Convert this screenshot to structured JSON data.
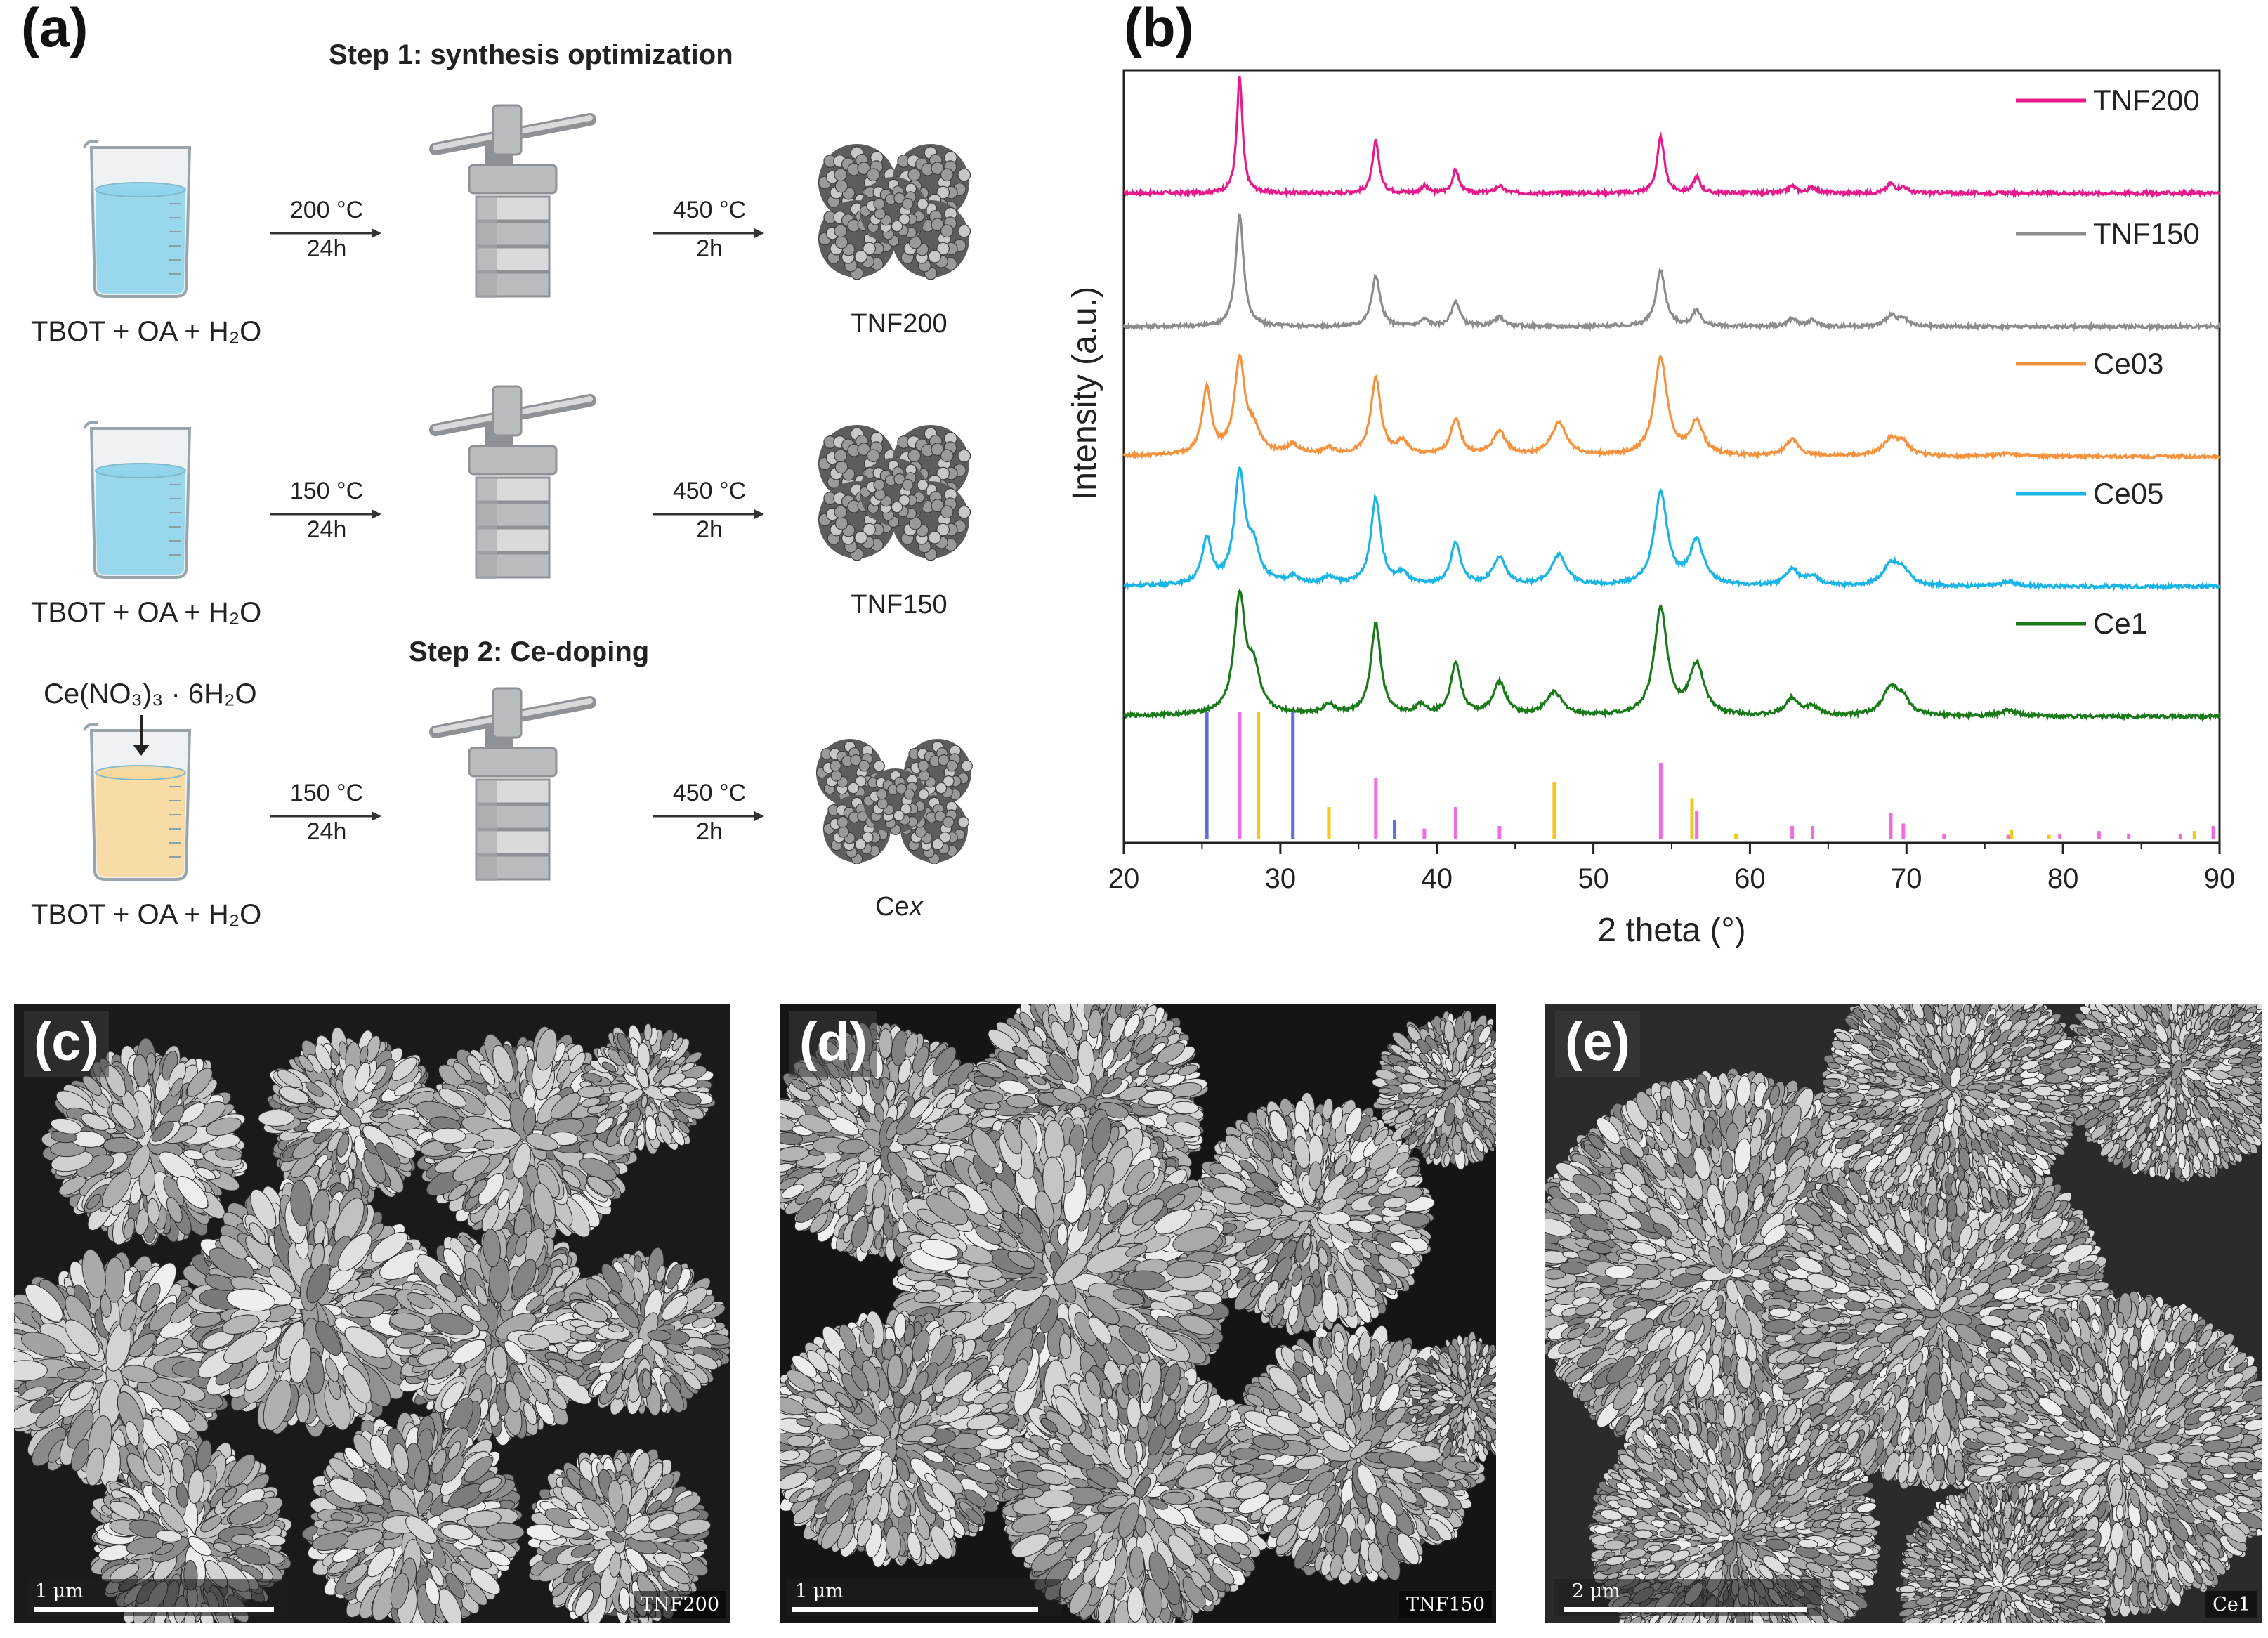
{
  "panel_a": {
    "letter": "(a)",
    "step1_title": "Step 1: synthesis optimization",
    "step2_title": "Step 2: Ce-doping",
    "rows": [
      {
        "reagent": "TBOT + OA + H₂O",
        "temp1": "200 °C",
        "time1": "24h",
        "temp2": "450 °C",
        "time2": "2h",
        "product": "TNF200",
        "liquid": "#8fd4ec"
      },
      {
        "reagent": "TBOT + OA + H₂O",
        "temp1": "150 °C",
        "time1": "24h",
        "temp2": "450 °C",
        "time2": "2h",
        "product": "TNF150",
        "liquid": "#8fd4ec"
      },
      {
        "reagent": "TBOT + OA + H₂O",
        "temp1": "150 °C",
        "time1": "24h",
        "temp2": "450 °C",
        "time2": "2h",
        "product": "Cex",
        "liquid": "#f7d9a0"
      }
    ],
    "dopant": "Ce(NO₃)₃ · 6H₂O"
  },
  "chart_data": {
    "type": "line",
    "panel_letter": "(b)",
    "xlabel": "2 theta (°)",
    "ylabel": "Intensity (a.u.)",
    "xlim": [
      20,
      90
    ],
    "xticks": [
      20,
      30,
      40,
      50,
      60,
      70,
      80,
      90
    ],
    "grid": false,
    "legend_placement": "right, beside each trace",
    "series": [
      {
        "name": "TNF200",
        "color": "#e8198b",
        "peaks": [
          [
            27.4,
            1.0,
            0.22
          ],
          [
            36.1,
            0.45,
            0.25
          ],
          [
            39.2,
            0.06,
            0.25
          ],
          [
            41.2,
            0.2,
            0.25
          ],
          [
            44.0,
            0.06,
            0.3
          ],
          [
            54.3,
            0.48,
            0.28
          ],
          [
            56.6,
            0.14,
            0.25
          ],
          [
            62.7,
            0.06,
            0.3
          ],
          [
            64.0,
            0.05,
            0.3
          ],
          [
            69.0,
            0.08,
            0.3
          ],
          [
            69.8,
            0.05,
            0.3
          ]
        ]
      },
      {
        "name": "TNF150",
        "color": "#8c8c8c",
        "peaks": [
          [
            27.4,
            1.0,
            0.3
          ],
          [
            36.1,
            0.45,
            0.32
          ],
          [
            39.2,
            0.06,
            0.32
          ],
          [
            41.2,
            0.22,
            0.32
          ],
          [
            44.0,
            0.08,
            0.4
          ],
          [
            54.3,
            0.5,
            0.36
          ],
          [
            56.6,
            0.14,
            0.32
          ],
          [
            62.7,
            0.07,
            0.35
          ],
          [
            64.0,
            0.05,
            0.35
          ],
          [
            69.0,
            0.1,
            0.4
          ],
          [
            69.8,
            0.06,
            0.35
          ]
        ]
      },
      {
        "name": "Ce03",
        "color": "#f5923e",
        "peaks": [
          [
            25.3,
            0.6,
            0.35
          ],
          [
            27.4,
            0.85,
            0.4
          ],
          [
            28.3,
            0.2,
            0.45
          ],
          [
            30.8,
            0.08,
            0.4
          ],
          [
            33.1,
            0.05,
            0.4
          ],
          [
            36.1,
            0.7,
            0.38
          ],
          [
            37.8,
            0.12,
            0.4
          ],
          [
            41.2,
            0.33,
            0.4
          ],
          [
            44.0,
            0.22,
            0.5
          ],
          [
            47.8,
            0.3,
            0.6
          ],
          [
            54.3,
            0.9,
            0.5
          ],
          [
            56.6,
            0.3,
            0.5
          ],
          [
            62.7,
            0.15,
            0.5
          ],
          [
            69.0,
            0.15,
            0.6
          ],
          [
            69.8,
            0.1,
            0.5
          ],
          [
            76.5,
            0.03,
            0.6
          ]
        ]
      },
      {
        "name": "Ce05",
        "color": "#1ab4e6",
        "peaks": [
          [
            25.3,
            0.42,
            0.35
          ],
          [
            27.4,
            1.0,
            0.4
          ],
          [
            28.3,
            0.3,
            0.45
          ],
          [
            30.8,
            0.06,
            0.4
          ],
          [
            33.1,
            0.06,
            0.4
          ],
          [
            36.1,
            0.8,
            0.38
          ],
          [
            37.8,
            0.1,
            0.4
          ],
          [
            41.2,
            0.38,
            0.4
          ],
          [
            44.0,
            0.25,
            0.5
          ],
          [
            47.8,
            0.28,
            0.6
          ],
          [
            54.3,
            0.85,
            0.5
          ],
          [
            56.6,
            0.4,
            0.55
          ],
          [
            62.7,
            0.15,
            0.5
          ],
          [
            64.0,
            0.08,
            0.5
          ],
          [
            69.0,
            0.2,
            0.6
          ],
          [
            69.8,
            0.12,
            0.5
          ],
          [
            76.5,
            0.04,
            0.6
          ]
        ]
      },
      {
        "name": "Ce1",
        "color": "#1a7a1a",
        "peaks": [
          [
            27.4,
            1.0,
            0.42
          ],
          [
            28.3,
            0.35,
            0.45
          ],
          [
            33.1,
            0.08,
            0.4
          ],
          [
            36.1,
            0.78,
            0.38
          ],
          [
            39.0,
            0.08,
            0.4
          ],
          [
            41.2,
            0.44,
            0.4
          ],
          [
            44.0,
            0.28,
            0.5
          ],
          [
            47.5,
            0.2,
            0.6
          ],
          [
            54.3,
            0.92,
            0.5
          ],
          [
            56.6,
            0.43,
            0.55
          ],
          [
            62.7,
            0.15,
            0.5
          ],
          [
            64.0,
            0.07,
            0.5
          ],
          [
            69.0,
            0.24,
            0.6
          ],
          [
            69.8,
            0.12,
            0.5
          ],
          [
            76.5,
            0.05,
            0.6
          ]
        ]
      }
    ],
    "reference_lines": [
      {
        "color": "#5b6fe0",
        "positions": [
          [
            25.3,
            1.0
          ],
          [
            30.8,
            1.0
          ],
          [
            37.3,
            0.15
          ]
        ]
      },
      {
        "color": "#f06ce0",
        "positions": [
          [
            27.4,
            1.0
          ],
          [
            36.1,
            0.48
          ],
          [
            39.2,
            0.08
          ],
          [
            41.2,
            0.25
          ],
          [
            44.0,
            0.1
          ],
          [
            54.3,
            0.6
          ],
          [
            56.6,
            0.22
          ],
          [
            62.7,
            0.1
          ],
          [
            64.0,
            0.1
          ],
          [
            69.0,
            0.2
          ],
          [
            69.8,
            0.12
          ],
          [
            72.4,
            0.04
          ],
          [
            76.5,
            0.03
          ],
          [
            79.8,
            0.04
          ],
          [
            82.3,
            0.06
          ],
          [
            84.2,
            0.04
          ],
          [
            87.5,
            0.04
          ],
          [
            89.6,
            0.1
          ]
        ]
      },
      {
        "color": "#f2c81a",
        "positions": [
          [
            28.6,
            1.0
          ],
          [
            33.1,
            0.25
          ],
          [
            47.5,
            0.45
          ],
          [
            56.3,
            0.32
          ],
          [
            59.1,
            0.04
          ],
          [
            76.7,
            0.07
          ],
          [
            79.1,
            0.03
          ],
          [
            88.4,
            0.06
          ]
        ]
      }
    ]
  },
  "sem_panels": [
    {
      "letter": "(c)",
      "scale": "1 μm",
      "tag": "TNF200"
    },
    {
      "letter": "(d)",
      "scale": "1 μm",
      "tag": "TNF150"
    },
    {
      "letter": "(e)",
      "scale": "2 μm",
      "tag": "Ce1"
    }
  ]
}
